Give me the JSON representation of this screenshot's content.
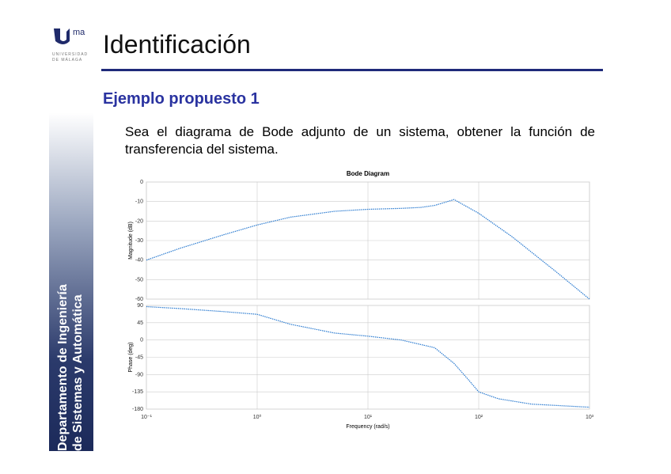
{
  "header": {
    "logo_text": "ma",
    "university": [
      "UNIVERSIDAD",
      "DE MÁLAGA"
    ],
    "title": "Identificación"
  },
  "sidebar": [
    "Departamento de Ingeniería",
    "de Sistemas y Automática"
  ],
  "section": "Ejemplo propuesto 1",
  "body": "Sea el diagrama de Bode adjunto de un sistema, obtener la función de transferencia del sistema.",
  "chart_data": [
    {
      "type": "line",
      "title": "Bode Diagram",
      "ylabel": "Magnitude (dB)",
      "log_x": true,
      "grid": true,
      "color": "#2b7bd0",
      "xlim": [
        0.1,
        1000
      ],
      "ylim": [
        -60,
        0
      ],
      "yticks": [
        0,
        -10,
        -20,
        -30,
        -40,
        -50,
        -60
      ],
      "x": [
        0.1,
        0.2,
        0.5,
        1,
        2,
        5,
        10,
        20,
        30,
        40,
        60,
        100,
        200,
        500,
        1000
      ],
      "values": [
        -40,
        -34,
        -27,
        -22,
        -18,
        -15,
        -14,
        -13.5,
        -13,
        -12,
        -9,
        -16,
        -28,
        -46,
        -60
      ]
    },
    {
      "type": "line",
      "ylabel": "Phase (deg)",
      "xlabel": "Frequency (rad/s)",
      "log_x": true,
      "grid": true,
      "color": "#2b7bd0",
      "xlim": [
        0.1,
        1000
      ],
      "ylim": [
        -180,
        90
      ],
      "yticks": [
        90,
        45,
        0,
        -45,
        -90,
        -135,
        -180
      ],
      "xticks": [
        {
          "value": 0.1,
          "label": "10⁻¹"
        },
        {
          "value": 1,
          "label": "10⁰"
        },
        {
          "value": 10,
          "label": "10¹"
        },
        {
          "value": 100,
          "label": "10²"
        },
        {
          "value": 1000,
          "label": "10³"
        }
      ],
      "x": [
        0.1,
        0.2,
        0.5,
        1,
        2,
        5,
        10,
        20,
        40,
        60,
        80,
        100,
        150,
        300,
        1000
      ],
      "values": [
        87,
        82,
        74,
        67,
        41,
        18,
        10,
        0,
        -20,
        -61,
        -102,
        -135,
        -153,
        -167,
        -175
      ]
    }
  ]
}
